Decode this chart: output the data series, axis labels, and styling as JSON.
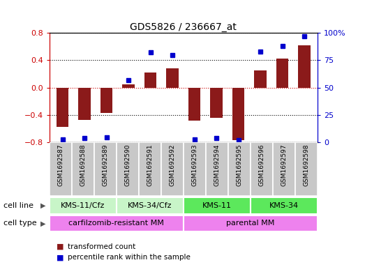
{
  "title": "GDS5826 / 236667_at",
  "samples": [
    "GSM1692587",
    "GSM1692588",
    "GSM1692589",
    "GSM1692590",
    "GSM1692591",
    "GSM1692592",
    "GSM1692593",
    "GSM1692594",
    "GSM1692595",
    "GSM1692596",
    "GSM1692597",
    "GSM1692598"
  ],
  "transformed_count": [
    -0.57,
    -0.47,
    -0.37,
    0.05,
    0.22,
    0.28,
    -0.48,
    -0.44,
    -0.77,
    0.25,
    0.43,
    0.62
  ],
  "percentile_rank": [
    3,
    4,
    5,
    57,
    82,
    80,
    3,
    4,
    2,
    83,
    88,
    97
  ],
  "bar_color": "#8B1A1A",
  "dot_color": "#0000CD",
  "left_ylim": [
    -0.8,
    0.8
  ],
  "right_ylim": [
    0,
    100
  ],
  "left_yticks": [
    -0.8,
    -0.4,
    0.0,
    0.4,
    0.8
  ],
  "right_yticks": [
    0,
    25,
    50,
    75,
    100
  ],
  "right_yticklabels": [
    "0",
    "25",
    "50",
    "75",
    "100%"
  ],
  "cell_line_groups": [
    {
      "label": "KMS-11/Cfz",
      "start": 0,
      "end": 3,
      "color": "#c8f5c8"
    },
    {
      "label": "KMS-34/Cfz",
      "start": 3,
      "end": 6,
      "color": "#c8f5c8"
    },
    {
      "label": "KMS-11",
      "start": 6,
      "end": 9,
      "color": "#5ce85c"
    },
    {
      "label": "KMS-34",
      "start": 9,
      "end": 12,
      "color": "#5ce85c"
    }
  ],
  "cell_type_groups": [
    {
      "label": "carfilzomib-resistant MM",
      "start": 0,
      "end": 6,
      "color": "#EE82EE"
    },
    {
      "label": "parental MM",
      "start": 6,
      "end": 12,
      "color": "#EE82EE"
    }
  ],
  "cell_line_label": "cell line",
  "cell_type_label": "cell type",
  "legend_items": [
    {
      "label": "transformed count",
      "color": "#8B1A1A"
    },
    {
      "label": "percentile rank within the sample",
      "color": "#0000CD"
    }
  ],
  "tick_label_color_left": "#CC0000",
  "tick_label_color_right": "#0000CC",
  "grid_color": "#000000",
  "background_color": "#ffffff",
  "plot_bg_color": "#ffffff",
  "sample_bg_color": "#C8C8C8"
}
